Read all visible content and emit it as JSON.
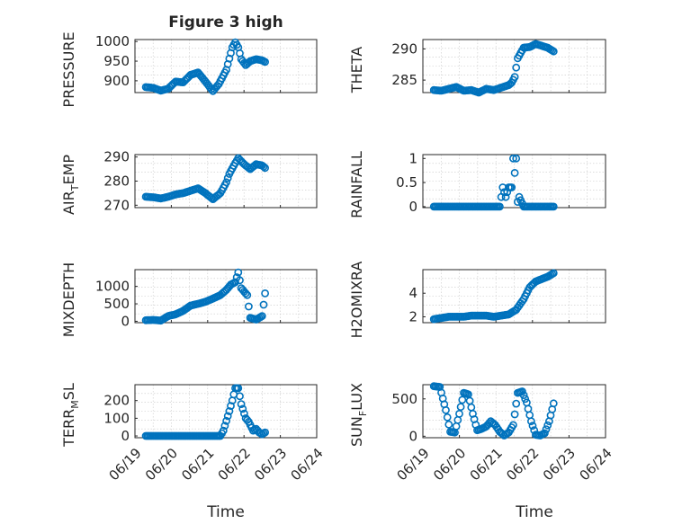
{
  "figure": {
    "title": "Figure 3 high",
    "xlabel": "Time",
    "x_tick_labels": [
      "06/19",
      "06/20",
      "06/21",
      "06/22",
      "06/23",
      "06/24"
    ],
    "marker_color": "#0072BD"
  },
  "chart_data": [
    {
      "type": "scatter",
      "ylabel": "PRESSURE",
      "ylim": [
        870,
        1005
      ],
      "yticks": [
        900,
        950,
        1000
      ],
      "ytick_labels": [
        "900",
        "950",
        "1000"
      ],
      "xlim": [
        0,
        5
      ],
      "grid": true,
      "x": [
        0.0,
        0.25,
        0.5,
        0.75,
        1.0,
        1.25,
        1.5,
        1.75,
        2.0,
        2.25,
        2.45,
        2.7,
        2.9,
        3.0,
        3.1,
        3.2,
        3.35,
        3.5,
        3.7,
        3.9,
        4.0
      ],
      "values": [
        884,
        882,
        875,
        880,
        898,
        896,
        915,
        921,
        898,
        874,
        892,
        928,
        985,
        998,
        985,
        955,
        940,
        950,
        955,
        952,
        948
      ]
    },
    {
      "type": "scatter",
      "ylabel": "THETA",
      "ylim": [
        283,
        291.5
      ],
      "yticks": [
        285,
        290
      ],
      "ytick_labels": [
        "285",
        "290"
      ],
      "xlim": [
        0,
        5
      ],
      "grid": true,
      "x": [
        0.0,
        0.25,
        0.5,
        0.75,
        1.0,
        1.25,
        1.5,
        1.75,
        2.0,
        2.25,
        2.5,
        2.6,
        2.7,
        2.8,
        3.0,
        3.2,
        3.4,
        3.6,
        3.8,
        4.0
      ],
      "values": [
        283.4,
        283.3,
        283.6,
        283.9,
        283.3,
        283.4,
        283.0,
        283.6,
        283.4,
        283.8,
        284.2,
        284.6,
        285.5,
        288.5,
        290.2,
        290.3,
        290.8,
        290.5,
        290.2,
        289.6
      ]
    },
    {
      "type": "scatter",
      "ylabel": "AIR_TEMP",
      "ylim": [
        269,
        291
      ],
      "yticks": [
        270,
        280,
        290
      ],
      "ytick_labels": [
        "270",
        "280",
        "290"
      ],
      "xlim": [
        0,
        5
      ],
      "grid": true,
      "x": [
        0.0,
        0.25,
        0.5,
        0.75,
        1.0,
        1.25,
        1.5,
        1.75,
        2.0,
        2.25,
        2.5,
        2.7,
        2.8,
        3.0,
        3.1,
        3.3,
        3.5,
        3.7,
        3.9,
        4.0
      ],
      "values": [
        273.5,
        273.3,
        272.8,
        273.5,
        274.5,
        275.0,
        276.0,
        277.0,
        275.0,
        272.5,
        275.0,
        279.5,
        283.0,
        287.5,
        289.5,
        287.0,
        285.0,
        287.0,
        286.5,
        285.5
      ]
    },
    {
      "type": "scatter",
      "ylabel": "RAINFALL",
      "ylim": [
        -0.02,
        1.08
      ],
      "yticks": [
        0,
        0.5,
        1
      ],
      "ytick_labels": [
        "0",
        "0.5",
        "1"
      ],
      "xlim": [
        0,
        5
      ],
      "grid": true,
      "x": [
        0.0,
        0.5,
        1.0,
        1.5,
        2.0,
        2.2,
        2.3,
        2.4,
        2.5,
        2.6,
        2.65,
        2.7,
        2.75,
        2.8,
        2.85,
        3.0,
        3.5,
        4.0
      ],
      "values": [
        0,
        0,
        0,
        0,
        0,
        0,
        0.4,
        0.2,
        0.4,
        0.4,
        1.0,
        0.7,
        1.0,
        0.1,
        0.2,
        0,
        0,
        0
      ]
    },
    {
      "type": "scatter",
      "ylabel": "MIXDEPTH",
      "ylim": [
        -40,
        1480
      ],
      "yticks": [
        0,
        500,
        1000
      ],
      "ytick_labels": [
        "0",
        "500",
        "1000"
      ],
      "xlim": [
        0,
        5
      ],
      "grid": true,
      "x": [
        0.0,
        0.25,
        0.5,
        0.75,
        1.0,
        1.25,
        1.5,
        1.75,
        2.0,
        2.25,
        2.5,
        2.7,
        2.85,
        3.0,
        3.1,
        3.2,
        3.4,
        3.5,
        3.7,
        3.9,
        4.0
      ],
      "values": [
        30,
        40,
        20,
        150,
        200,
        300,
        450,
        500,
        560,
        650,
        750,
        900,
        1050,
        1120,
        1400,
        950,
        750,
        100,
        50,
        150,
        800
      ]
    },
    {
      "type": "scatter",
      "ylabel": "H2OMIXRA",
      "ylim": [
        1.5,
        6.0
      ],
      "yticks": [
        2,
        4
      ],
      "ytick_labels": [
        "2",
        "4"
      ],
      "xlim": [
        0,
        5
      ],
      "grid": true,
      "x": [
        0.0,
        0.25,
        0.5,
        0.75,
        1.0,
        1.25,
        1.5,
        1.75,
        2.0,
        2.25,
        2.5,
        2.75,
        3.0,
        3.2,
        3.4,
        3.6,
        3.8,
        4.0
      ],
      "values": [
        1.8,
        1.9,
        2.0,
        2.0,
        2.0,
        2.1,
        2.1,
        2.1,
        2.0,
        2.1,
        2.2,
        2.6,
        3.5,
        4.5,
        5.0,
        5.2,
        5.4,
        5.7
      ]
    },
    {
      "type": "scatter",
      "ylabel": "TERR_MSL",
      "ylim": [
        -10,
        290
      ],
      "yticks": [
        0,
        100,
        200
      ],
      "ytick_labels": [
        "0",
        "100",
        "200"
      ],
      "xlim": [
        0,
        5
      ],
      "grid": true,
      "x": [
        0.0,
        0.5,
        1.0,
        1.5,
        2.0,
        2.5,
        2.6,
        2.8,
        2.9,
        3.0,
        3.1,
        3.2,
        3.35,
        3.45,
        3.6,
        3.7,
        3.8,
        3.9,
        4.0
      ],
      "values": [
        0,
        0,
        0,
        0,
        0,
        0,
        30,
        140,
        200,
        270,
        270,
        180,
        100,
        80,
        30,
        40,
        20,
        10,
        20
      ]
    },
    {
      "type": "scatter",
      "ylabel": "SUN_FLUX",
      "ylim": [
        -20,
        690
      ],
      "yticks": [
        0,
        500
      ],
      "ytick_labels": [
        "0",
        "500"
      ],
      "xlim": [
        0,
        5
      ],
      "grid": true,
      "x": [
        0.0,
        0.2,
        0.4,
        0.55,
        0.7,
        0.85,
        1.0,
        1.15,
        1.3,
        1.45,
        1.6,
        1.75,
        1.9,
        2.05,
        2.2,
        2.35,
        2.5,
        2.65,
        2.8,
        2.95,
        3.1,
        3.25,
        3.4,
        3.55,
        3.7,
        3.85,
        4.0
      ],
      "values": [
        670,
        660,
        350,
        60,
        50,
        300,
        580,
        560,
        300,
        80,
        100,
        130,
        200,
        150,
        60,
        10,
        50,
        150,
        580,
        600,
        450,
        200,
        20,
        10,
        40,
        200,
        440
      ]
    }
  ]
}
